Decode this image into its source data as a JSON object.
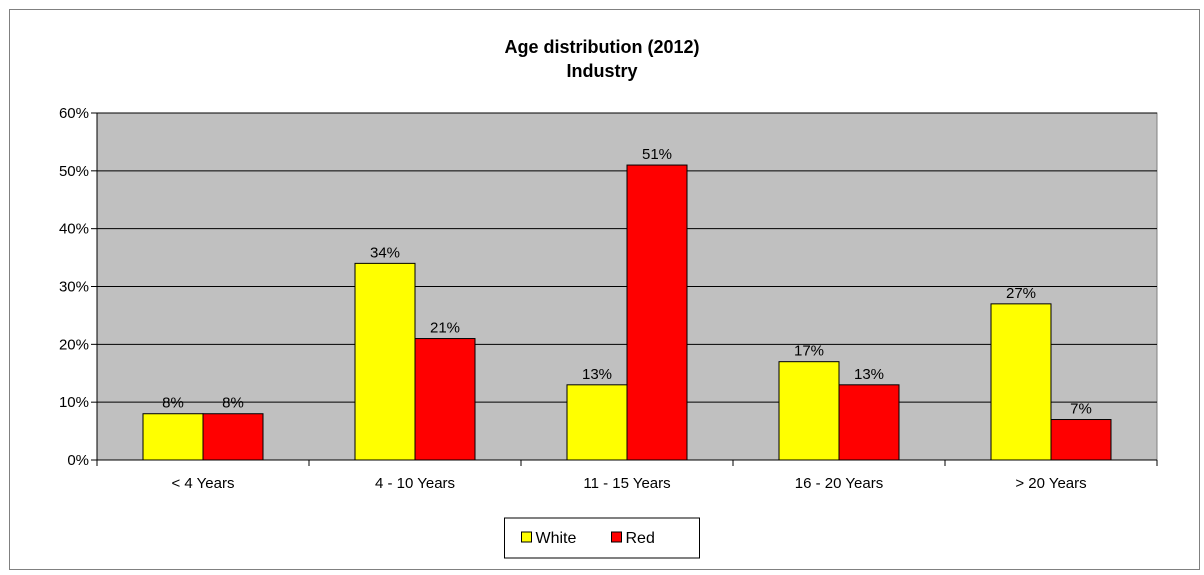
{
  "chart_data": {
    "type": "bar",
    "title": "Age distribution (2012)",
    "subtitle": "Industry",
    "categories": [
      "< 4 Years",
      "4 - 10 Years",
      "11 - 15 Years",
      "16 - 20 Years",
      "> 20 Years"
    ],
    "series": [
      {
        "name": "White",
        "color": "#ffff00",
        "values": [
          8,
          34,
          13,
          17,
          27
        ],
        "labels": [
          "8%",
          "34%",
          "13%",
          "17%",
          "27%"
        ]
      },
      {
        "name": "Red",
        "color": "#ff0000",
        "values": [
          8,
          21,
          51,
          13,
          7
        ],
        "labels": [
          "8%",
          "21%",
          "51%",
          "13%",
          "7%"
        ]
      }
    ],
    "ylim": [
      0,
      60
    ],
    "yticks": [
      0,
      10,
      20,
      30,
      40,
      50,
      60
    ],
    "ytick_labels": [
      "0%",
      "10%",
      "20%",
      "30%",
      "40%",
      "50%",
      "60%"
    ],
    "grid": true,
    "plot_background": "#c0c0c0",
    "legend_position": "bottom"
  }
}
